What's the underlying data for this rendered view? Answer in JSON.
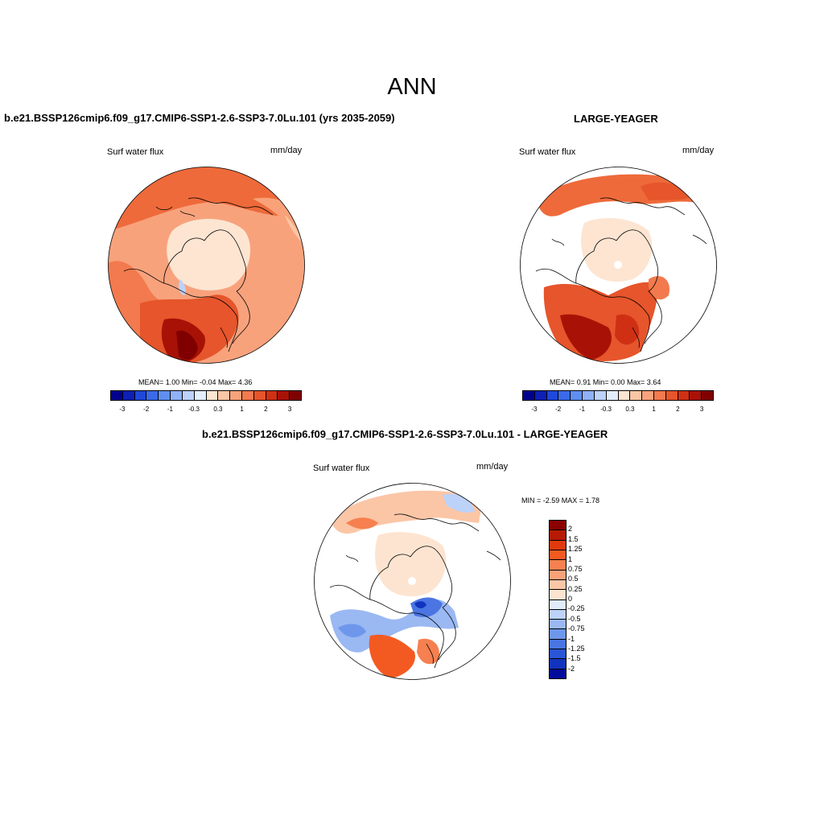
{
  "title": "ANN",
  "panels": {
    "left": {
      "title": "b.e21.BSSP126cmip6.f09_g17.CMIP6-SSP1-2.6-SSP3-7.0Lu.101 (yrs 2035-2059)",
      "variable": "Surf water flux",
      "units": "mm/day",
      "stats": "MEAN=   1.00  Min=  -0.04  Max=   4.36"
    },
    "right": {
      "title": "LARGE-YEAGER",
      "variable": "Surf water flux",
      "units": "mm/day",
      "stats": "MEAN=   0.91  Min=   0.00  Max=   3.64"
    },
    "diff": {
      "title": "b.e21.BSSP126cmip6.f09_g17.CMIP6-SSP1-2.6-SSP3-7.0Lu.101 - LARGE-YEAGER",
      "variable": "Surf water flux",
      "units": "mm/day",
      "stats": "MIN =  -2.59 MAX =   1.78"
    }
  },
  "top_colorbar": {
    "colors": [
      "#00008f",
      "#0d1fb5",
      "#1f47d9",
      "#3a6ae8",
      "#5f8ef0",
      "#8fb1f5",
      "#bcd2f9",
      "#e3eefc",
      "#fde5d2",
      "#fbc6a6",
      "#f8a27c",
      "#f27a4e",
      "#e6552b",
      "#cf3014",
      "#a81206",
      "#800000"
    ],
    "labels": [
      "-3",
      "-2",
      "-1",
      "-0.3",
      "0.3",
      "1",
      "2",
      "3"
    ]
  },
  "diff_colorbar": {
    "colors": [
      "#8a0000",
      "#b51a05",
      "#de3a0e",
      "#f35a22",
      "#f6804f",
      "#f9a27a",
      "#fbc6a6",
      "#fde4d0",
      "#e1ecfb",
      "#bcd2f9",
      "#9ab8f2",
      "#6e97ec",
      "#4a75e2",
      "#2a55d6",
      "#1233bf",
      "#020c9a"
    ],
    "labels": [
      "2",
      "1.5",
      "1.25",
      "1",
      "0.75",
      "0.5",
      "0.25",
      "0",
      "-0.25",
      "-0.5",
      "-0.75",
      "-1",
      "-1.25",
      "-1.5",
      "-2"
    ]
  }
}
